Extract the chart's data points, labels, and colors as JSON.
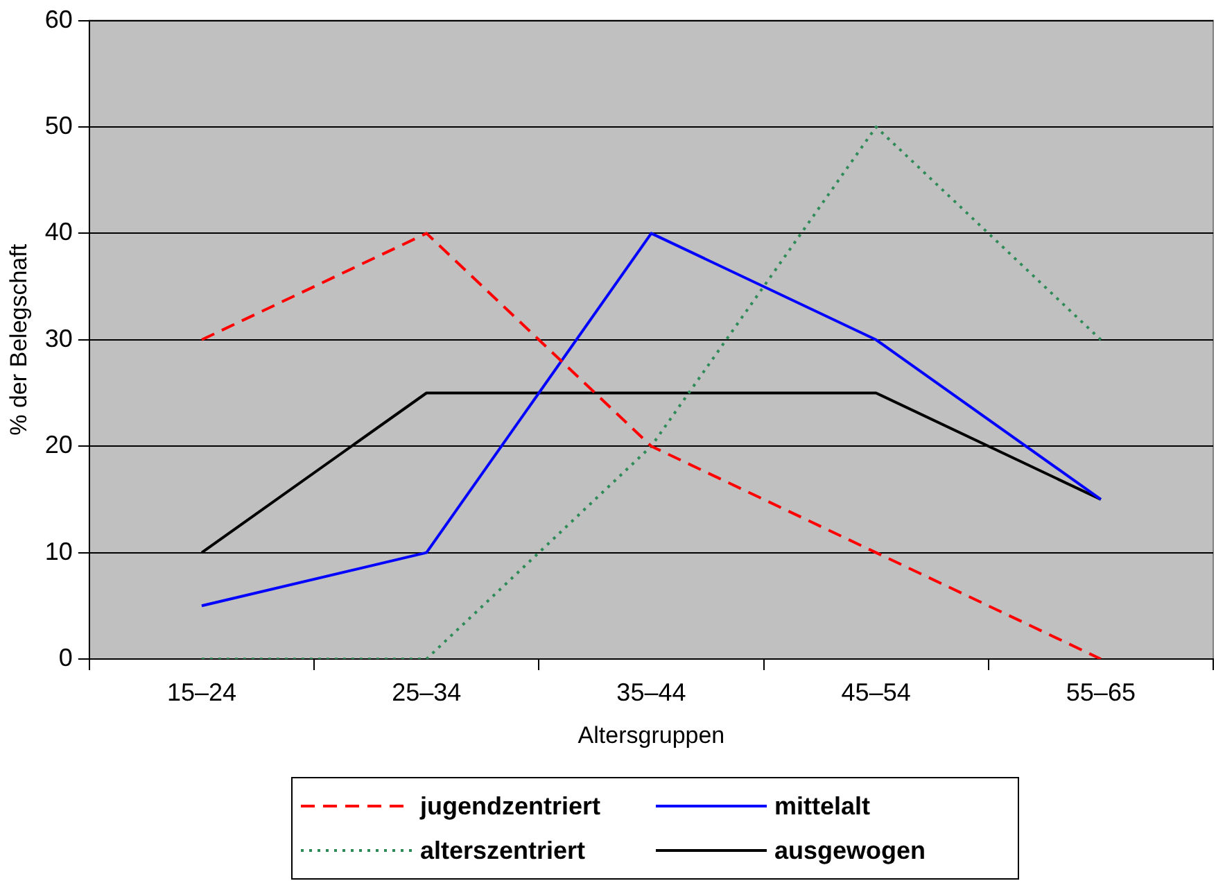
{
  "chart_data": {
    "type": "line",
    "xlabel": "Altersgruppen",
    "ylabel": "% der Belegschaft",
    "categories": [
      "15–24",
      "25–34",
      "35–44",
      "45–54",
      "55–65"
    ],
    "ylim": [
      0,
      60
    ],
    "yticks": [
      0,
      10,
      20,
      30,
      40,
      50,
      60
    ],
    "grid": "y",
    "legend": "bottom",
    "marker": "none",
    "series": [
      {
        "name": "jugendzentriert",
        "color": "#ff0000",
        "line_style": "dashed",
        "values": [
          30,
          40,
          20,
          10,
          0
        ]
      },
      {
        "name": "mittelalt",
        "color": "#0000ff",
        "line_style": "solid",
        "values": [
          5,
          10,
          40,
          30,
          15
        ]
      },
      {
        "name": "alterszentriert",
        "color": "#2e8b57",
        "line_style": "dotted",
        "values": [
          0,
          0,
          20,
          50,
          30
        ]
      },
      {
        "name": "ausgewogen",
        "color": "#000000",
        "line_style": "solid",
        "values": [
          10,
          25,
          25,
          25,
          15
        ]
      }
    ]
  }
}
